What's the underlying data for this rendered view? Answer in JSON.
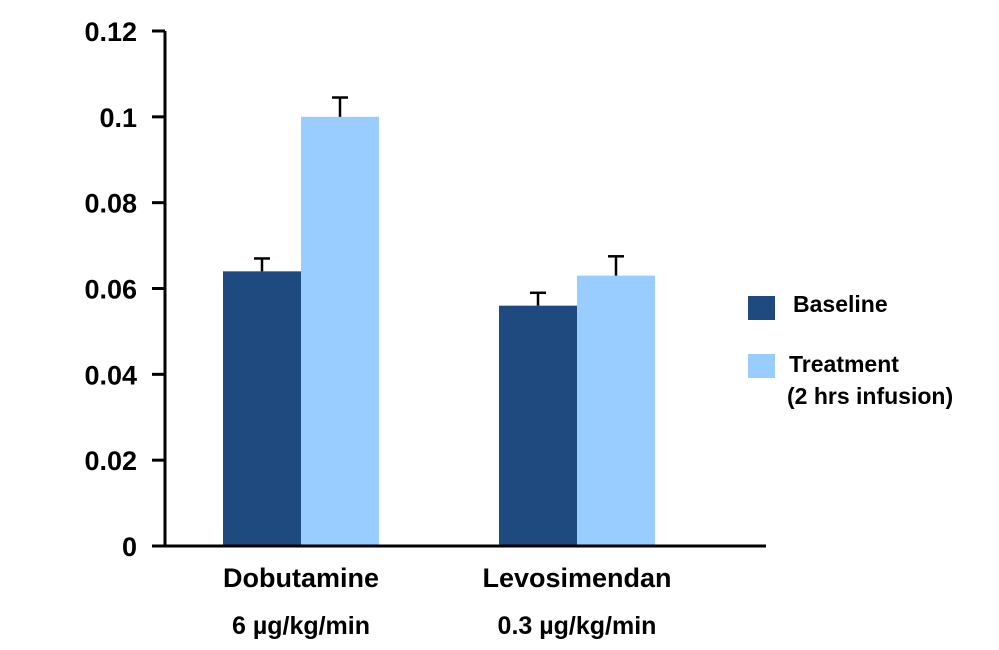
{
  "chart_data": {
    "type": "bar",
    "categories": [
      {
        "name": "Dobutamine",
        "subtitle": "6 µg/kg/min"
      },
      {
        "name": "Levosimendan",
        "subtitle": "0.3 µg/kg/min"
      }
    ],
    "series": [
      {
        "name": "Baseline",
        "color": "#1f4a7f",
        "values": [
          0.064,
          0.056
        ],
        "errors": [
          0.003,
          0.003
        ]
      },
      {
        "name": "Treatment",
        "name_line2": "(2 hrs infusion)",
        "color": "#99ccff",
        "values": [
          0.1,
          0.063
        ],
        "errors": [
          0.0045,
          0.0045
        ]
      }
    ],
    "ylim": [
      0,
      0.12
    ],
    "yticks": [
      "0",
      "0.02",
      "0.04",
      "0.06",
      "0.08",
      "0.1",
      "0.12"
    ],
    "ytick_values": [
      0,
      0.02,
      0.04,
      0.06,
      0.08,
      0.1,
      0.12
    ],
    "title": "",
    "xlabel": "",
    "ylabel": "",
    "grid": false,
    "legend_position": "right"
  }
}
